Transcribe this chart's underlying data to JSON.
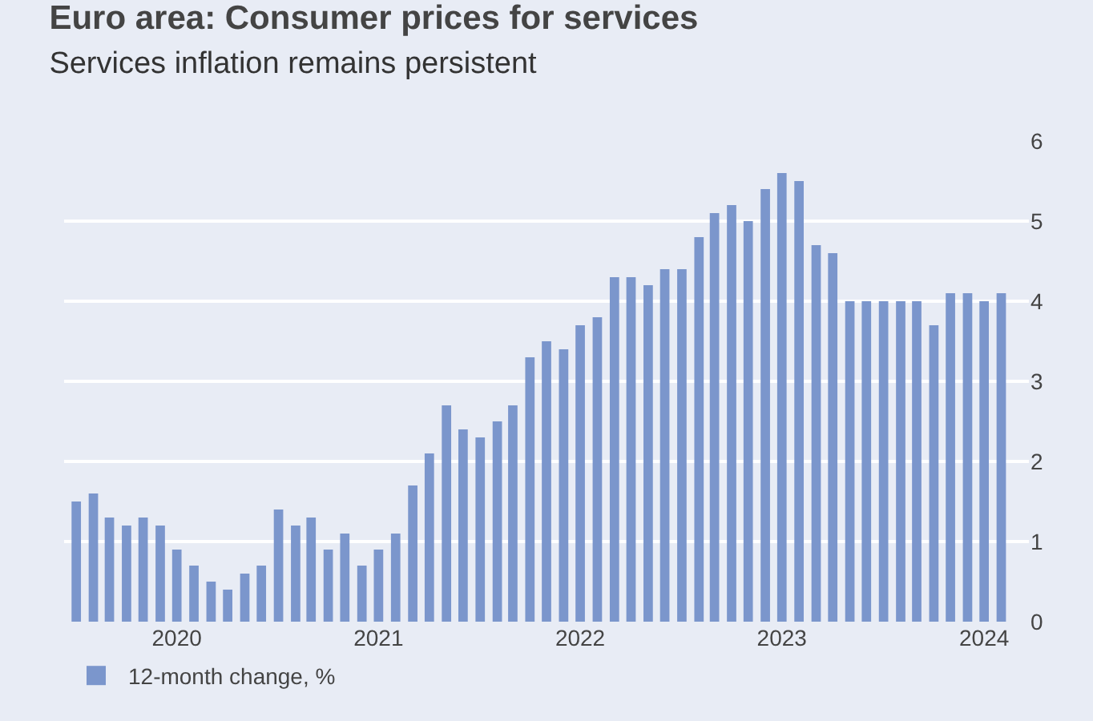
{
  "chart_data": {
    "type": "bar",
    "title": "Euro area: Consumer prices for services",
    "subtitle": "Services inflation remains persistent",
    "x": [
      "2020-01",
      "2020-02",
      "2020-03",
      "2020-04",
      "2020-05",
      "2020-06",
      "2020-07",
      "2020-08",
      "2020-09",
      "2020-10",
      "2020-11",
      "2020-12",
      "2021-01",
      "2021-02",
      "2021-03",
      "2021-04",
      "2021-05",
      "2021-06",
      "2021-07",
      "2021-08",
      "2021-09",
      "2021-10",
      "2021-11",
      "2021-12",
      "2022-01",
      "2022-02",
      "2022-03",
      "2022-04",
      "2022-05",
      "2022-06",
      "2022-07",
      "2022-08",
      "2022-09",
      "2022-10",
      "2022-11",
      "2022-12",
      "2023-01",
      "2023-02",
      "2023-03",
      "2023-04",
      "2023-05",
      "2023-06",
      "2023-07",
      "2023-08",
      "2023-09",
      "2023-10",
      "2023-11",
      "2023-12",
      "2024-01",
      "2024-02",
      "2024-03",
      "2024-04",
      "2024-05",
      "2024-06",
      "2024-07",
      "2024-08"
    ],
    "series": [
      {
        "name": "12-month change, %",
        "color": "#7b96cc",
        "values": [
          1.5,
          1.6,
          1.3,
          1.2,
          1.3,
          1.2,
          0.9,
          0.7,
          0.5,
          0.4,
          0.6,
          0.7,
          1.4,
          1.2,
          1.3,
          0.9,
          1.1,
          0.7,
          0.9,
          1.1,
          1.7,
          2.1,
          2.7,
          2.4,
          2.3,
          2.5,
          2.7,
          3.3,
          3.5,
          3.4,
          3.7,
          3.8,
          4.3,
          4.3,
          4.2,
          4.4,
          4.4,
          4.8,
          5.1,
          5.2,
          5.0,
          5.4,
          5.6,
          5.5,
          4.7,
          4.6,
          4.0,
          4.0,
          4.0,
          4.0,
          4.0,
          3.7,
          4.1,
          4.1,
          4.0,
          4.1
        ]
      }
    ],
    "xlim": [
      "2019-12-10",
      "2024-09-20"
    ],
    "xticks": [
      {
        "value": "2020-07-01",
        "label": "2020"
      },
      {
        "value": "2021-07-01",
        "label": "2021"
      },
      {
        "value": "2022-07-01",
        "label": "2022"
      },
      {
        "value": "2023-07-01",
        "label": "2023"
      },
      {
        "value": "2024-07-01",
        "label": "2024"
      }
    ],
    "ylim": [
      0,
      6
    ],
    "yticks": [
      0,
      1,
      2,
      3,
      4,
      5,
      6
    ],
    "grid": "y",
    "legend": "bottom left"
  }
}
